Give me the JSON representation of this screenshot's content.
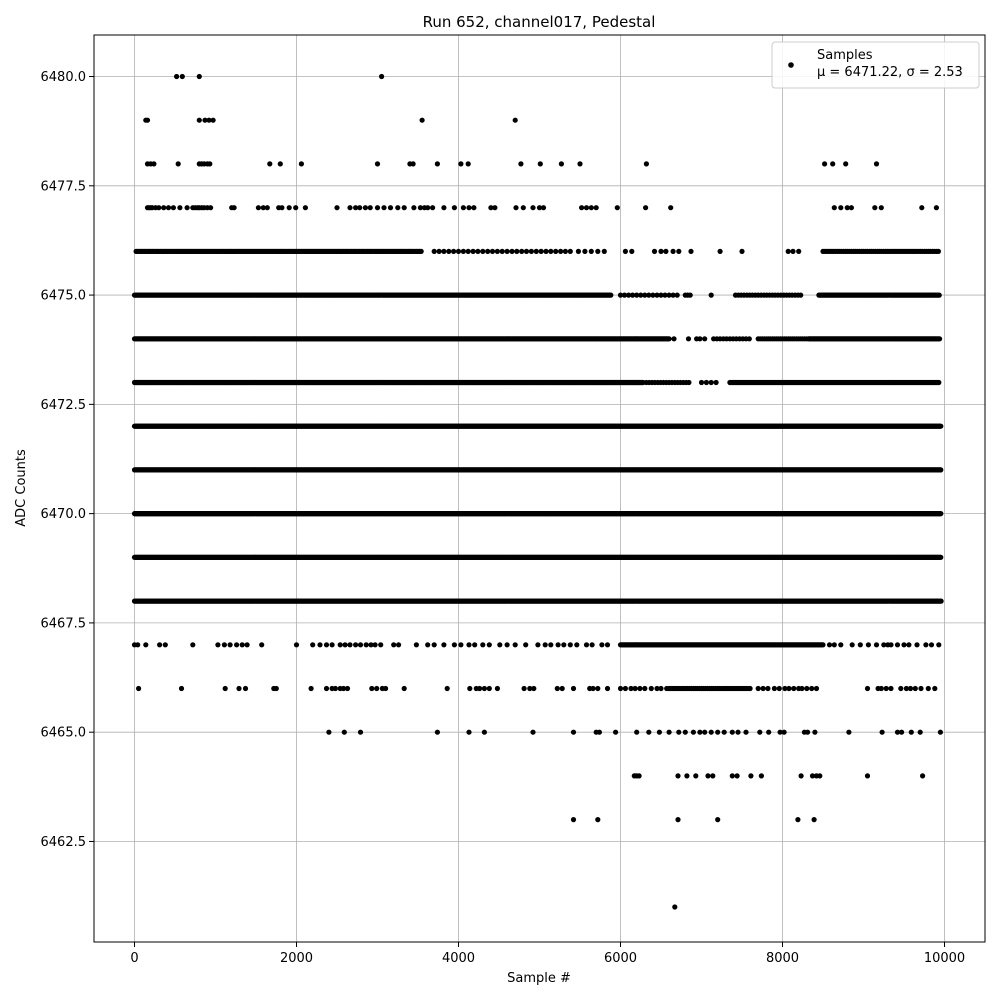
{
  "chart_data": {
    "type": "scatter",
    "title": "Run 652, channel017, Pedestal",
    "xlabel": "Sample #",
    "ylabel": "ADC Counts",
    "xlim": [
      -500,
      10500
    ],
    "ylim": [
      6460.2,
      6480.95
    ],
    "x_ticks": [
      0,
      2000,
      4000,
      6000,
      8000,
      10000
    ],
    "y_ticks": [
      6462.5,
      6465.0,
      6467.5,
      6470.0,
      6472.5,
      6475.0,
      6477.5,
      6480.0
    ],
    "grid": true,
    "legend": {
      "position": "top-right",
      "entry": "Samples",
      "stats_label": "μ = 6471.22, σ = 2.53"
    },
    "marker_color": "#000000",
    "series": [
      {
        "name": "Samples",
        "rows": [
          {
            "y": 6480,
            "x": [
              520,
              590,
              800,
              3050
            ]
          },
          {
            "y": 6479,
            "x": [
              140,
              160,
              800,
              870,
              920,
              970,
              3550,
              4700
            ]
          },
          {
            "y": 6478,
            "x": [
              160,
              200,
              240,
              540,
              800,
              830,
              860,
              900,
              930,
              1670,
              1800,
              2060,
              3000,
              3400,
              3440,
              3740,
              4030,
              4120,
              4770,
              5010,
              5270,
              5500,
              6320,
              8520,
              8620,
              8780,
              9160
            ]
          },
          {
            "y": 6477,
            "x": [
              160,
              180,
              200,
              220,
              260,
              300,
              360,
              420,
              480,
              560,
              650,
              720,
              750,
              780,
              800,
              830,
              860,
              900,
              940,
              1200,
              1230,
              1530,
              1590,
              1640,
              1780,
              1820,
              1910,
              1990,
              2110,
              2500,
              2660,
              2730,
              2780,
              2850,
              2910,
              3000,
              3080,
              3160,
              3250,
              3330,
              3450,
              3530,
              3580,
              3620,
              3680,
              3820,
              3950,
              4060,
              4130,
              4190,
              4400,
              4450,
              4710,
              4800,
              4920,
              5000,
              5050,
              5520,
              5580,
              5640,
              5700,
              5960,
              6310,
              6620,
              8640,
              8720,
              8800,
              8850,
              9140,
              9220,
              9720,
              9900
            ]
          },
          {
            "y": 6476,
            "dense": [
              [
                20,
                3550,
                20
              ],
              [
                3700,
                5400,
                60
              ],
              [
                5480,
                5860,
                80
              ],
              [
                8500,
                9940,
                25
              ]
            ],
            "x": [
              6060,
              6140,
              6420,
              6500,
              6560,
              6650,
              6720,
              6870,
              7230,
              7500,
              8070,
              8130,
              8200
            ]
          },
          {
            "y": 6475,
            "dense": [
              [
                0,
                5880,
                15
              ],
              [
                6000,
                6700,
                50
              ],
              [
                6800,
                6880,
                30
              ],
              [
                7420,
                8250,
                35
              ],
              [
                8450,
                9940,
                15
              ]
            ],
            "x": [
              7120
            ]
          },
          {
            "y": 6474,
            "dense": [
              [
                0,
                6600,
                10
              ],
              [
                7150,
                7600,
                40
              ],
              [
                7700,
                8330,
                25
              ],
              [
                8330,
                9940,
                10
              ]
            ],
            "x": [
              6660,
              6840,
              6940,
              6980,
              7040
            ]
          },
          {
            "y": 6473,
            "dense": [
              [
                0,
                6280,
                8
              ],
              [
                6320,
                6860,
                35
              ],
              [
                7000,
                7200,
                60
              ],
              [
                7350,
                9940,
                12
              ]
            ]
          },
          {
            "y": 6472,
            "dense": [
              [
                0,
                9960,
                7
              ]
            ]
          },
          {
            "y": 6471,
            "dense": [
              [
                0,
                9960,
                7
              ]
            ]
          },
          {
            "y": 6470,
            "dense": [
              [
                0,
                9960,
                7
              ]
            ]
          },
          {
            "y": 6469,
            "dense": [
              [
                0,
                9960,
                7
              ]
            ]
          },
          {
            "y": 6468,
            "dense": [
              [
                0,
                9960,
                13
              ]
            ]
          },
          {
            "y": 6467,
            "dense": [
              [
                6000,
                8500,
                10
              ]
            ],
            "x": [
              0,
              40,
              140,
              310,
              380,
              720,
              1030,
              1110,
              1180,
              1260,
              1330,
              1390,
              1570,
              2000,
              2200,
              2290,
              2370,
              2440,
              2540,
              2600,
              2660,
              2730,
              2790,
              2860,
              2920,
              2970,
              3040,
              3200,
              3260,
              3480,
              3620,
              3700,
              3820,
              3950,
              4030,
              4130,
              4200,
              4300,
              4380,
              4510,
              4600,
              4700,
              4830,
              4980,
              5070,
              5140,
              5230,
              5300,
              5380,
              5460,
              5580,
              5650,
              5770,
              5840,
              8580,
              8640,
              8720,
              8860,
              8960,
              9060,
              9160,
              9250,
              9300,
              9340,
              9420,
              9500,
              9560,
              9660,
              9770,
              9840,
              9930
            ]
          },
          {
            "y": 6466,
            "dense": [
              [
                6600,
                7600,
                25
              ]
            ],
            "x": [
              50,
              580,
              1120,
              1290,
              1370,
              1720,
              1750,
              2180,
              2370,
              2440,
              2480,
              2540,
              2580,
              2630,
              2930,
              2990,
              3060,
              3100,
              3330,
              3860,
              4140,
              4220,
              4260,
              4320,
              4380,
              4480,
              4810,
              4880,
              4930,
              5220,
              5280,
              5420,
              5620,
              5660,
              5720,
              5840,
              6000,
              6060,
              6130,
              6180,
              6240,
              6300,
              6380,
              6450,
              6500,
              6570,
              7700,
              7760,
              7820,
              7900,
              7960,
              8030,
              8080,
              8140,
              8200,
              8240,
              8300,
              8360,
              8420,
              9050,
              9180,
              9220,
              9280,
              9340,
              9460,
              9530,
              9580,
              9640,
              9710,
              9800,
              9880
            ]
          },
          {
            "y": 6465,
            "x": [
              2400,
              2590,
              2790,
              3740,
              4130,
              4320,
              4920,
              5420,
              5700,
              5740,
              5940,
              6200,
              6350,
              6480,
              6600,
              6720,
              6800,
              6900,
              6980,
              7040,
              7120,
              7200,
              7280,
              7380,
              7450,
              7550,
              7720,
              7830,
              7970,
              8020,
              8270,
              8310,
              8400,
              8820,
              9230,
              9420,
              9470,
              9590,
              9700,
              9950
            ]
          },
          {
            "y": 6464,
            "x": [
              6170,
              6200,
              6230,
              6710,
              6820,
              6930,
              7080,
              7140,
              7380,
              7440,
              7610,
              7740,
              8230,
              8370,
              8420,
              8460,
              9050,
              9730
            ]
          },
          {
            "y": 6463,
            "x": [
              5420,
              5720,
              6710,
              7200,
              8190,
              8390
            ]
          },
          {
            "y": 6461,
            "x": [
              6670
            ]
          }
        ]
      }
    ]
  }
}
